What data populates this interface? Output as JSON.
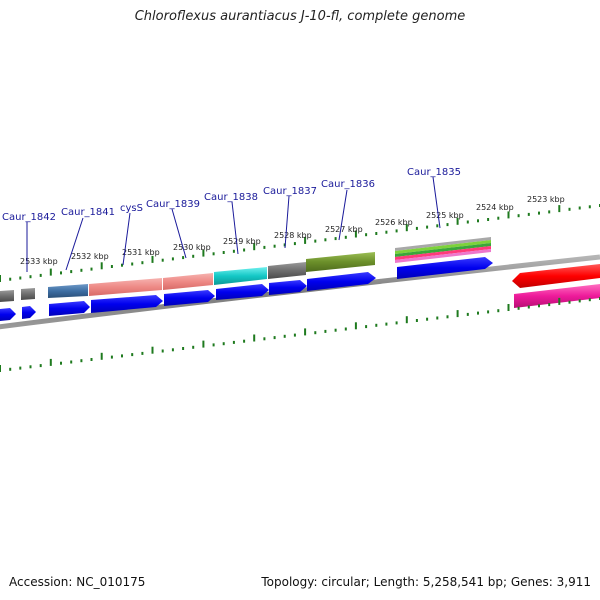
{
  "title": "Chloroflexus aurantiacus J-10-fl, complete genome",
  "footer": {
    "accession": "Accession: NC_010175",
    "stats": "Topology: circular; Length: 5,258,541 bp; Genes: 3,911"
  },
  "ticks": [
    "2533 kbp",
    "2532 kbp",
    "2531 kbp",
    "2530 kbp",
    "2529 kbp",
    "2528 kbp",
    "2527 kbp",
    "2526 kbp",
    "2525 kbp",
    "2524 kbp",
    "2523 kbp"
  ],
  "gene_labels": [
    "Caur_1842",
    "Caur_1841",
    "cysS",
    "Caur_1839",
    "Caur_1838",
    "Caur_1837",
    "Caur_1836",
    "Caur_1835"
  ],
  "colors": {
    "backbone": "#8a8a8a",
    "tick": "#1e7a1e",
    "cds": "#0000ee",
    "label_line": "#1a1a9a"
  }
}
